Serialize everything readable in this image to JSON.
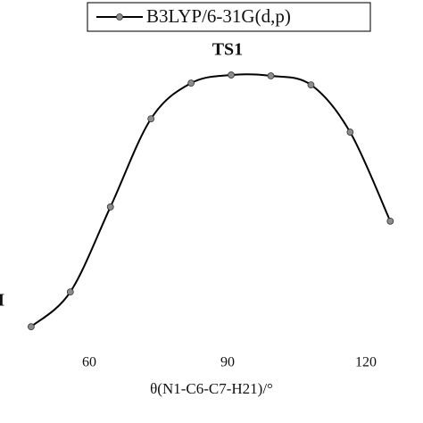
{
  "chart_data": {
    "type": "line",
    "x_label": "θ(N1-C6-C7-H21)/°",
    "annotations": [
      {
        "text": "TS1",
        "x": 90,
        "y": 101
      },
      {
        "text": "I",
        "x": 40.9,
        "y": 14.5
      }
    ],
    "series": [
      {
        "name": "B3LYP/6-31G(d,p)",
        "color": "#000000",
        "marker_color": "#8c8c8c",
        "x": [
          47.4,
          55.9,
          64.6,
          73.4,
          82.1,
          90.8,
          99.4,
          108.1,
          116.6,
          125.3
        ],
        "values": [
          5.8,
          17.8,
          47.1,
          77.5,
          89.8,
          92.6,
          92.3,
          89.2,
          72.9,
          42.2
        ]
      }
    ],
    "xlim": [
      40.65,
      132.4
    ],
    "xticks": [
      60,
      90,
      120
    ],
    "ylim": [
      0,
      100
    ],
    "grid": false,
    "legend": "top"
  }
}
